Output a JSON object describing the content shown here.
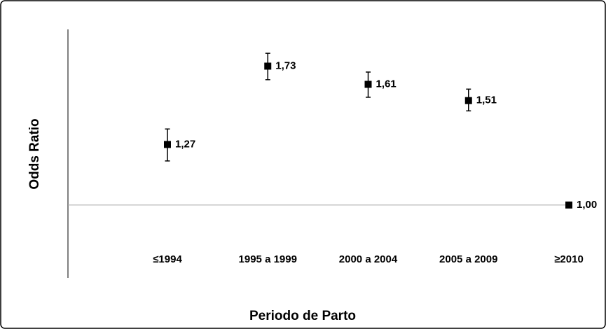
{
  "chart_data": {
    "type": "errorbar",
    "x_label": "Periodo de Parto",
    "y_label": "Odds Ratio",
    "categories": [
      "≤1994",
      "1995 a 1999",
      "2000 a 2004",
      "2005 a 2009",
      "≥2010"
    ],
    "series": [
      {
        "name": "Odds Ratio",
        "color": "#000000",
        "values": [
          1.27,
          1.73,
          1.61,
          1.51,
          1.0
        ],
        "value_labels": [
          "1,27",
          "1,73",
          "1,61",
          "1,51",
          "1,00"
        ],
        "ci_low": [
          1.19,
          1.64,
          1.53,
          1.45,
          null
        ],
        "ci_high": [
          1.35,
          1.82,
          1.69,
          1.58,
          null
        ]
      }
    ],
    "ylim": [
      0.75,
      2.0
    ],
    "log_scale": true,
    "reference_line": 1
  }
}
